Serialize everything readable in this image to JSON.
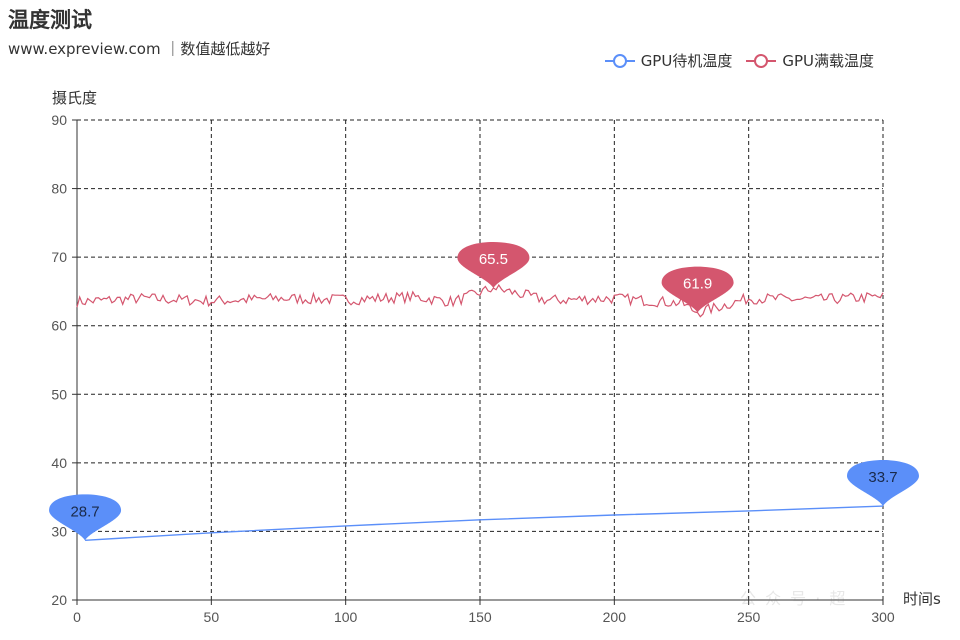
{
  "page": {
    "title": "温度测试",
    "subtitle": "www.expreview.com ｜数值越低越好"
  },
  "chart_data": {
    "type": "line",
    "title": "温度测试",
    "subtitle": "www.expreview.com ｜数值越低越好",
    "xlabel": "时间s",
    "ylabel": "摄氏度",
    "xlim": [
      0,
      300
    ],
    "ylim": [
      20,
      90
    ],
    "x_ticks": [
      "0",
      "50",
      "100",
      "150",
      "200",
      "250",
      "300"
    ],
    "y_ticks": [
      "20",
      "30",
      "40",
      "50",
      "60",
      "70",
      "80",
      "90"
    ],
    "grid": true,
    "legend_position": "top-right",
    "series": [
      {
        "name": "GPU待机温度",
        "color": "#5b8ff9",
        "x": [
          3,
          50,
          100,
          150,
          200,
          250,
          300
        ],
        "values": [
          28.7,
          29.8,
          30.8,
          31.7,
          32.4,
          33.0,
          33.7
        ],
        "markers": [
          {
            "label": "28.7",
            "x": 3,
            "y": 28.7
          },
          {
            "label": "33.7",
            "x": 300,
            "y": 33.7
          }
        ]
      },
      {
        "name": "GPU满载温度",
        "color": "#d4566e",
        "x": [
          0,
          25,
          50,
          75,
          100,
          125,
          140,
          155,
          175,
          200,
          225,
          231,
          250,
          275,
          300
        ],
        "values": [
          63.5,
          64.0,
          63.6,
          64.0,
          63.8,
          64.2,
          63.5,
          65.5,
          63.7,
          64.0,
          63.3,
          61.9,
          64.0,
          63.8,
          64.2
        ],
        "markers": [
          {
            "label": "65.5",
            "x": 155,
            "y": 65.5
          },
          {
            "label": "61.9",
            "x": 231,
            "y": 61.9
          }
        ]
      }
    ]
  }
}
